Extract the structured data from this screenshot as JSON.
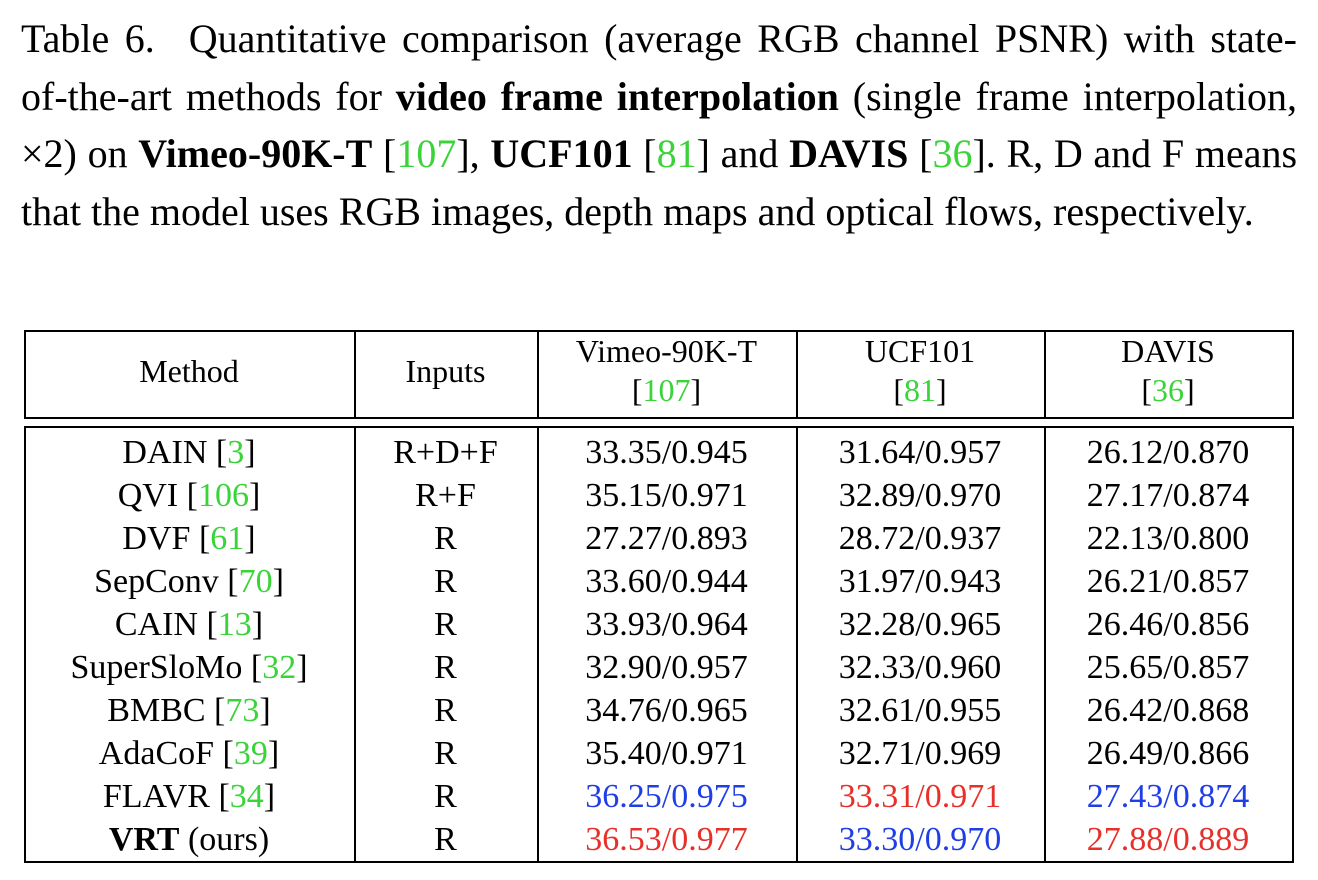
{
  "caption": {
    "label": "Table 6.",
    "t1": "Quantitative comparison (average RGB channel PSNR) with state-of-the-art methods for ",
    "b1": "video frame interpolation",
    "t2": " (single frame interpolation, ×2) on ",
    "b2": "Vimeo-90K-T",
    "t3": " [",
    "r1": "107",
    "t4": "], ",
    "b3": "UCF101",
    "t5": " [",
    "r2": "81",
    "t6": "] and ",
    "b4": "DAVIS",
    "t7": " [",
    "r3": "36",
    "t8": "]. R, D and F means that the model uses RGB images, depth maps and optical flows, respectively."
  },
  "header": {
    "method": "Method",
    "inputs": "Inputs",
    "datasets": [
      {
        "name": "Vimeo-90K-T",
        "ref": "107"
      },
      {
        "name": "UCF101",
        "ref": "81"
      },
      {
        "name": "DAVIS",
        "ref": "36"
      }
    ]
  },
  "rows": [
    {
      "method": "DAIN",
      "ref": "3",
      "inputs": "R+D+F",
      "vimeo": "33.35/0.945",
      "ucf": "31.64/0.957",
      "davis": "26.12/0.870"
    },
    {
      "method": "QVI",
      "ref": "106",
      "inputs": "R+F",
      "vimeo": "35.15/0.971",
      "ucf": "32.89/0.970",
      "davis": "27.17/0.874"
    },
    {
      "method": "DVF",
      "ref": "61",
      "inputs": "R",
      "vimeo": "27.27/0.893",
      "ucf": "28.72/0.937",
      "davis": "22.13/0.800"
    },
    {
      "method": "SepConv",
      "ref": "70",
      "inputs": "R",
      "vimeo": "33.60/0.944",
      "ucf": "31.97/0.943",
      "davis": "26.21/0.857"
    },
    {
      "method": "CAIN",
      "ref": "13",
      "inputs": "R",
      "vimeo": "33.93/0.964",
      "ucf": "32.28/0.965",
      "davis": "26.46/0.856"
    },
    {
      "method": "SuperSloMo",
      "ref": "32",
      "inputs": "R",
      "vimeo": "32.90/0.957",
      "ucf": "32.33/0.960",
      "davis": "25.65/0.857"
    },
    {
      "method": "BMBC",
      "ref": "73",
      "inputs": "R",
      "vimeo": "34.76/0.965",
      "ucf": "32.61/0.955",
      "davis": "26.42/0.868"
    },
    {
      "method": "AdaCoF",
      "ref": "39",
      "inputs": "R",
      "vimeo": "35.40/0.971",
      "ucf": "32.71/0.969",
      "davis": "26.49/0.866"
    },
    {
      "method": "FLAVR",
      "ref": "34",
      "inputs": "R",
      "vimeo": "36.25/0.975",
      "ucf": "33.31/0.971",
      "davis": "27.43/0.874"
    },
    {
      "method": "VRT",
      "suffix": " (ours)",
      "inputs": "R",
      "vimeo": "36.53/0.977",
      "ucf": "33.30/0.970",
      "davis": "27.88/0.889"
    }
  ],
  "highlight_colors": {
    "best": "#e8302a",
    "second": "#1f3ee6",
    "citation": "#3ad43a"
  }
}
